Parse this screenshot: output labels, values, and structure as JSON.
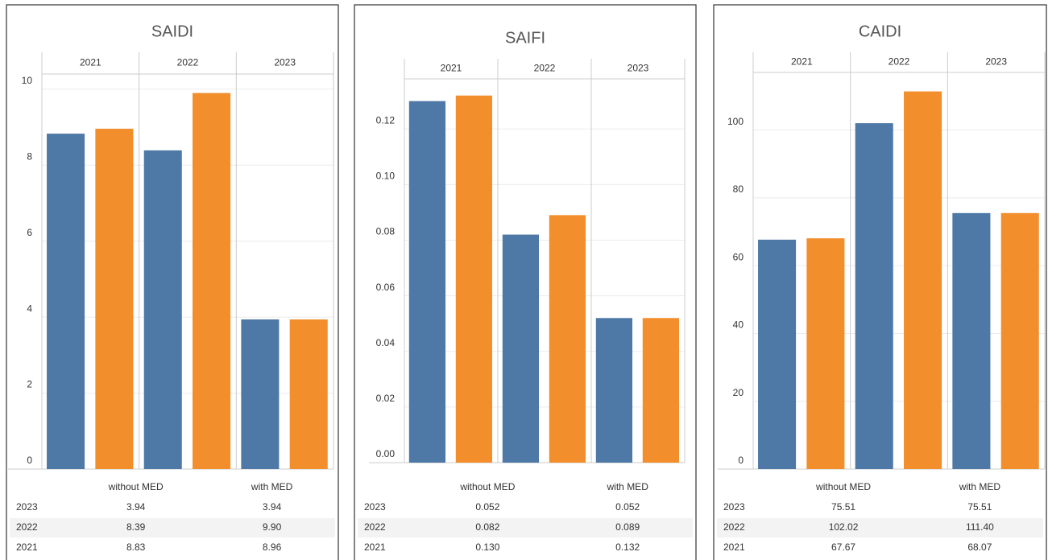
{
  "chart_data": [
    {
      "type": "bar",
      "title": "SAIDI",
      "categories": [
        "2021",
        "2022",
        "2023"
      ],
      "series": [
        {
          "name": "without MED",
          "color": "#4e79a7",
          "values": [
            8.83,
            8.39,
            3.94
          ],
          "value_labels": [
            "8.83",
            "8.39",
            "3.94"
          ]
        },
        {
          "name": "with MED",
          "color": "#f28e2b",
          "values": [
            8.96,
            9.9,
            3.94
          ],
          "value_labels": [
            "8.96",
            "9.90",
            "3.94"
          ]
        }
      ],
      "ylim": [
        0,
        10.4
      ],
      "yticks": [
        0,
        2,
        4,
        6,
        8,
        10
      ],
      "grid": true
    },
    {
      "type": "bar",
      "title": "SAIFI",
      "categories": [
        "2021",
        "2022",
        "2023"
      ],
      "series": [
        {
          "name": "without MED",
          "color": "#4e79a7",
          "values": [
            0.13,
            0.082,
            0.052
          ],
          "value_labels": [
            "0.130",
            "0.082",
            "0.052"
          ]
        },
        {
          "name": "with MED",
          "color": "#f28e2b",
          "values": [
            0.132,
            0.089,
            0.052
          ],
          "value_labels": [
            "0.132",
            "0.089",
            "0.052"
          ]
        }
      ],
      "ylim": [
        0,
        0.138
      ],
      "yticks": [
        {
          "value": 0,
          "label": "0.00"
        },
        0.02,
        0.04,
        0.06,
        0.08,
        {
          "value": 0.1,
          "label": "0.10"
        },
        0.12
      ],
      "grid": true
    },
    {
      "type": "bar",
      "title": "CAIDI",
      "categories": [
        "2021",
        "2022",
        "2023"
      ],
      "series": [
        {
          "name": "without MED",
          "color": "#4e79a7",
          "values": [
            67.67,
            102.02,
            75.51
          ],
          "value_labels": [
            "67.67",
            "102.02",
            "75.51"
          ]
        },
        {
          "name": "with MED",
          "color": "#f28e2b",
          "values": [
            68.07,
            111.4,
            75.51
          ],
          "value_labels": [
            "68.07",
            "111.40",
            "75.51"
          ]
        }
      ],
      "ylim": [
        0,
        117
      ],
      "yticks": [
        0,
        20,
        40,
        60,
        80,
        100
      ],
      "grid": true
    }
  ]
}
